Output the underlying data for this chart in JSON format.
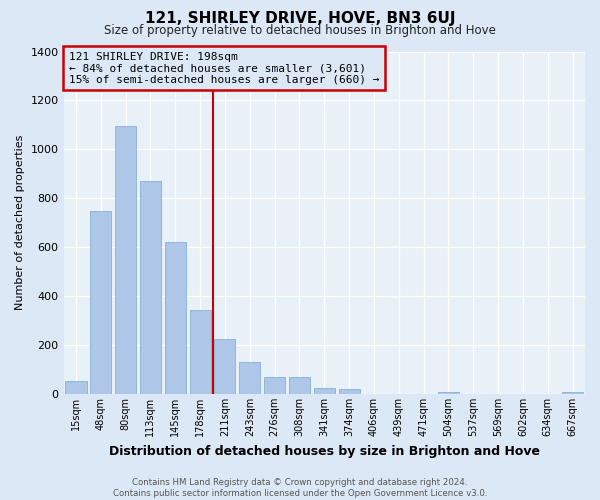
{
  "title": "121, SHIRLEY DRIVE, HOVE, BN3 6UJ",
  "subtitle": "Size of property relative to detached houses in Brighton and Hove",
  "xlabel": "Distribution of detached houses by size in Brighton and Hove",
  "ylabel": "Number of detached properties",
  "bar_labels": [
    "15sqm",
    "48sqm",
    "80sqm",
    "113sqm",
    "145sqm",
    "178sqm",
    "211sqm",
    "243sqm",
    "276sqm",
    "308sqm",
    "341sqm",
    "374sqm",
    "406sqm",
    "439sqm",
    "471sqm",
    "504sqm",
    "537sqm",
    "569sqm",
    "602sqm",
    "634sqm",
    "667sqm"
  ],
  "bar_values": [
    55,
    750,
    1095,
    870,
    620,
    345,
    225,
    130,
    70,
    70,
    25,
    20,
    0,
    0,
    0,
    10,
    0,
    0,
    0,
    0,
    10
  ],
  "bar_color": "#aec6e8",
  "bar_edgecolor": "#7aaad0",
  "vline_x_index": 5.5,
  "vline_color": "#cc0000",
  "annotation_line1": "121 SHIRLEY DRIVE: 198sqm",
  "annotation_line2": "← 84% of detached houses are smaller (3,601)",
  "annotation_line3": "15% of semi-detached houses are larger (660) →",
  "box_edgecolor": "#cc0000",
  "ylim": [
    0,
    1400
  ],
  "yticks": [
    0,
    200,
    400,
    600,
    800,
    1000,
    1200,
    1400
  ],
  "footer_line1": "Contains HM Land Registry data © Crown copyright and database right 2024.",
  "footer_line2": "Contains public sector information licensed under the Open Government Licence v3.0.",
  "background_color": "#dce8f5",
  "plot_bg_color": "#e8f0f8",
  "grid_color": "#ffffff"
}
